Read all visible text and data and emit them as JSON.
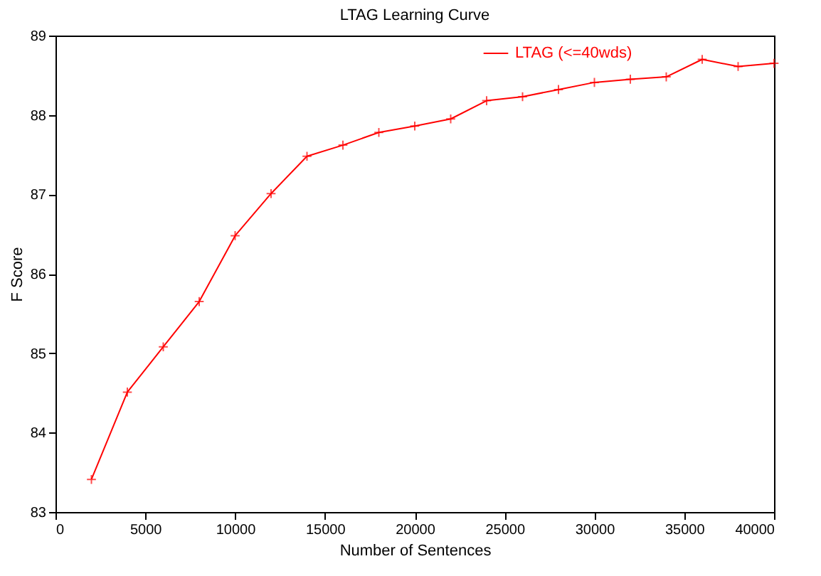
{
  "chart_data": {
    "type": "line",
    "title": "LTAG Learning Curve",
    "xlabel": "Number of Sentences",
    "ylabel": "F Score",
    "x": [
      2000,
      4000,
      6000,
      8000,
      10000,
      12000,
      14000,
      16000,
      18000,
      20000,
      22000,
      24000,
      26000,
      28000,
      30000,
      32000,
      34000,
      36000,
      38000,
      40000
    ],
    "series": [
      {
        "name": "LTAG (<=40wds)",
        "color": "#ff0000",
        "values": [
          83.41,
          84.51,
          85.08,
          85.65,
          86.48,
          87.01,
          87.48,
          87.62,
          87.78,
          87.86,
          87.95,
          88.18,
          88.23,
          88.32,
          88.41,
          88.45,
          88.48,
          88.7,
          88.61,
          88.65
        ]
      }
    ],
    "xlim": [
      0,
      40000
    ],
    "xticks": [
      0,
      5000,
      10000,
      15000,
      20000,
      25000,
      30000,
      35000,
      40000
    ],
    "ylim": [
      83,
      89
    ],
    "yticks": [
      83,
      84,
      85,
      86,
      87,
      88,
      89
    ],
    "legend": "top right",
    "marker": "cross",
    "line_style": "solid",
    "grid": false
  }
}
